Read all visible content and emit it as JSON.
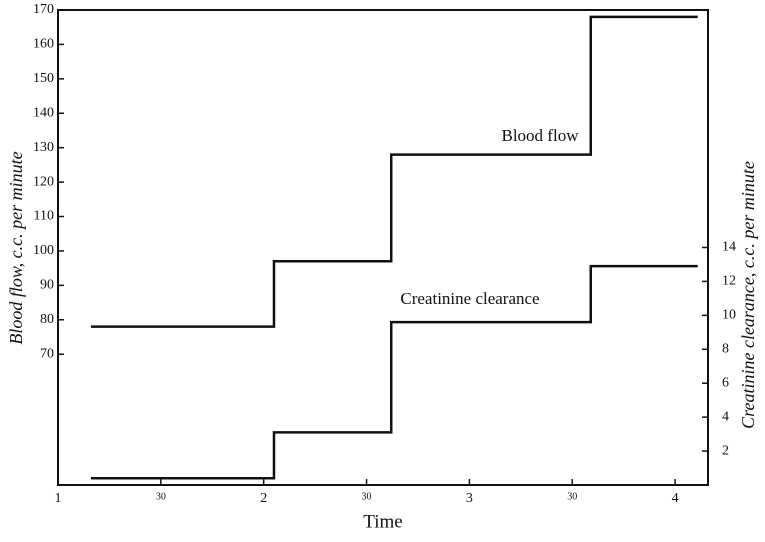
{
  "chart_data": {
    "type": "step",
    "x_label": "Time",
    "y_label": "Blood flow, c.c. per minute",
    "y2_label": "Creatinine clearance, c.c. per minute",
    "annotations": [
      "Blood flow",
      "Creatinine clearance"
    ],
    "x": [
      1.16,
      2.05,
      2.62,
      3.59,
      4.11
    ],
    "series": [
      {
        "name": "Blood flow",
        "color": "#111111",
        "values": [
          78,
          97,
          128,
          168,
          168
        ]
      },
      {
        "name": "Creatinine clearance",
        "color": "#111111",
        "axis": "y2",
        "values": [
          0.4,
          3.1,
          9.6,
          12.9,
          12.9
        ]
      }
    ],
    "xlim": [
      1,
      4.16
    ],
    "xticks": [
      1,
      {
        "value": 1.5,
        "label": "30"
      },
      2,
      {
        "value": 2.5,
        "label": "30"
      },
      3,
      {
        "value": 3.5,
        "label": "30"
      },
      4
    ],
    "ylim": [
      32,
      170
    ],
    "yticks": [
      70,
      80,
      90,
      100,
      110,
      120,
      130,
      140,
      150,
      160,
      170
    ],
    "y2lim": [
      0,
      28
    ],
    "y2ticks": [
      2,
      4,
      6,
      8,
      10,
      12,
      14
    ]
  }
}
